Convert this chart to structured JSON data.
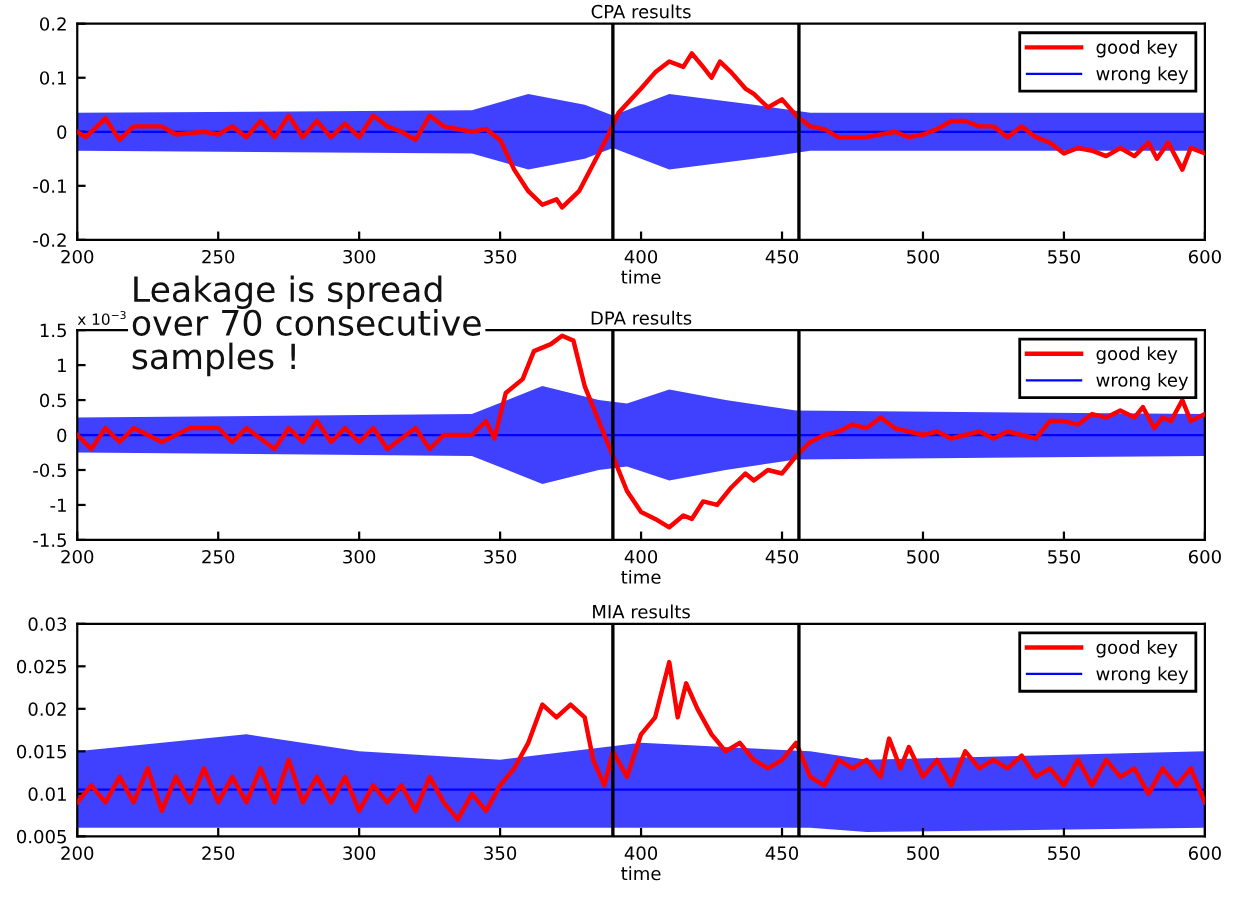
{
  "chart_data": [
    {
      "type": "line",
      "title": "CPA results",
      "xlabel": "time",
      "xlim": [
        200,
        600
      ],
      "xticks": [
        200,
        250,
        300,
        350,
        400,
        450,
        500,
        550,
        600
      ],
      "ylim": [
        -0.2,
        0.2
      ],
      "yticks": [
        -0.2,
        -0.1,
        0,
        0.1,
        0.2
      ],
      "legend": "top right",
      "grid": false,
      "marker": "none",
      "line_style": "solid",
      "annotations": [
        "Leakage is spread\nover 70 consecutive\nsamples !"
      ],
      "ref_lines": [
        {
          "axis": "x",
          "value": 390,
          "color": "#000000"
        },
        {
          "axis": "x",
          "value": 456,
          "color": "#000000"
        }
      ],
      "series": [
        {
          "name": "good key",
          "color": "#ff0000",
          "x": [
            200,
            203,
            210,
            215,
            220,
            230,
            235,
            245,
            250,
            255,
            260,
            265,
            270,
            275,
            280,
            285,
            290,
            295,
            300,
            305,
            310,
            315,
            320,
            325,
            330,
            340,
            345,
            350,
            355,
            360,
            365,
            370,
            372,
            378,
            383,
            388,
            392,
            400,
            405,
            410,
            415,
            418,
            422,
            425,
            428,
            432,
            437,
            440,
            445,
            450,
            455,
            460,
            465,
            470,
            480,
            490,
            495,
            500,
            505,
            510,
            515,
            520,
            525,
            530,
            535,
            540,
            545,
            550,
            555,
            560,
            565,
            570,
            575,
            580,
            583,
            587,
            592,
            595,
            600
          ],
          "values": [
            0,
            -0.01,
            0.025,
            -0.015,
            0.01,
            0.01,
            -0.005,
            0,
            -0.005,
            0.01,
            -0.01,
            0.02,
            -0.01,
            0.03,
            -0.01,
            0.02,
            -0.01,
            0.015,
            -0.01,
            0.03,
            0.01,
            0,
            -0.015,
            0.03,
            0.01,
            0,
            0.005,
            -0.015,
            -0.07,
            -0.11,
            -0.135,
            -0.125,
            -0.14,
            -0.11,
            -0.06,
            -0.01,
            0.035,
            0.08,
            0.11,
            0.13,
            0.12,
            0.145,
            0.12,
            0.1,
            0.13,
            0.11,
            0.08,
            0.07,
            0.045,
            0.06,
            0.03,
            0.01,
            0.005,
            -0.01,
            -0.01,
            0,
            -0.01,
            -0.005,
            0.005,
            0.02,
            0.02,
            0.01,
            0.01,
            -0.01,
            0.01,
            -0.01,
            -0.02,
            -0.04,
            -0.03,
            -0.035,
            -0.045,
            -0.03,
            -0.045,
            -0.02,
            -0.05,
            -0.02,
            -0.07,
            -0.03,
            -0.04
          ]
        },
        {
          "name": "wrong key",
          "color": "#0000ff",
          "x": [
            200,
            340,
            360,
            380,
            390,
            410,
            440,
            460,
            600
          ],
          "values": [
            0,
            0,
            0,
            0,
            0,
            0,
            0,
            0,
            0
          ],
          "lower": [
            -0.035,
            -0.04,
            -0.07,
            -0.05,
            -0.03,
            -0.07,
            -0.05,
            -0.035,
            -0.035
          ],
          "upper": [
            0.035,
            0.04,
            0.07,
            0.05,
            0.03,
            0.07,
            0.05,
            0.035,
            0.035
          ]
        }
      ]
    },
    {
      "type": "line",
      "title": "DPA results",
      "xlabel": "time",
      "xlim": [
        200,
        600
      ],
      "xticks": [
        200,
        250,
        300,
        350,
        400,
        450,
        500,
        550,
        600
      ],
      "ylim": [
        -1.5,
        1.5
      ],
      "yticks": [
        -1.5,
        -1,
        -0.5,
        0,
        0.5,
        1,
        1.5
      ],
      "legend": "top right",
      "grid": false,
      "marker": "none",
      "line_style": "solid",
      "annotations": [
        "x 10$^{−3}$"
      ],
      "ref_lines": [
        {
          "axis": "x",
          "value": 390,
          "color": "#000000"
        },
        {
          "axis": "x",
          "value": 456,
          "color": "#000000"
        }
      ],
      "series": [
        {
          "name": "good key",
          "color": "#ff0000",
          "x": [
            200,
            205,
            210,
            215,
            220,
            230,
            240,
            250,
            255,
            260,
            270,
            275,
            280,
            285,
            290,
            295,
            300,
            305,
            310,
            320,
            325,
            330,
            340,
            345,
            348,
            352,
            358,
            362,
            368,
            372,
            376,
            380,
            385,
            390,
            395,
            400,
            405,
            410,
            415,
            418,
            422,
            427,
            432,
            437,
            440,
            445,
            450,
            455,
            460,
            465,
            470,
            475,
            480,
            485,
            490,
            500,
            505,
            510,
            520,
            525,
            530,
            540,
            545,
            550,
            555,
            560,
            565,
            570,
            575,
            578,
            582,
            585,
            588,
            592,
            595,
            600
          ],
          "values": [
            0,
            -0.2,
            0.1,
            -0.1,
            0.1,
            -0.1,
            0.1,
            0.1,
            -0.1,
            0.1,
            -0.2,
            0.1,
            -0.1,
            0.2,
            -0.1,
            0.1,
            -0.1,
            0.1,
            -0.2,
            0.1,
            -0.2,
            0,
            0,
            0.2,
            -0.05,
            0.6,
            0.8,
            1.2,
            1.3,
            1.42,
            1.35,
            0.7,
            0.2,
            -0.3,
            -0.8,
            -1.1,
            -1.2,
            -1.32,
            -1.15,
            -1.2,
            -0.95,
            -1,
            -0.75,
            -0.55,
            -0.65,
            -0.5,
            -0.55,
            -0.3,
            -0.1,
            0,
            0.05,
            0.15,
            0.1,
            0.25,
            0.1,
            0,
            0.05,
            -0.05,
            0.05,
            -0.05,
            0.05,
            -0.05,
            0.2,
            0.2,
            0.15,
            0.3,
            0.25,
            0.35,
            0.25,
            0.4,
            0.1,
            0.25,
            0.2,
            0.5,
            0.2,
            0.3
          ]
        },
        {
          "name": "wrong key",
          "color": "#0000ff",
          "x": [
            200,
            340,
            365,
            385,
            395,
            410,
            430,
            455,
            600
          ],
          "values": [
            0,
            0,
            0,
            0,
            0,
            0,
            0,
            0,
            0
          ],
          "lower": [
            -0.25,
            -0.3,
            -0.7,
            -0.5,
            -0.45,
            -0.65,
            -0.5,
            -0.35,
            -0.3
          ],
          "upper": [
            0.25,
            0.3,
            0.7,
            0.5,
            0.45,
            0.65,
            0.5,
            0.35,
            0.3
          ]
        }
      ]
    },
    {
      "type": "line",
      "title": "MIA results",
      "xlabel": "time",
      "xlim": [
        200,
        600
      ],
      "xticks": [
        200,
        250,
        300,
        350,
        400,
        450,
        500,
        550,
        600
      ],
      "ylim": [
        0.005,
        0.03
      ],
      "yticks": [
        0.005,
        0.01,
        0.015,
        0.02,
        0.025,
        0.03
      ],
      "legend": "top right",
      "grid": false,
      "marker": "none",
      "line_style": "solid",
      "ref_lines": [
        {
          "axis": "x",
          "value": 390,
          "color": "#000000"
        },
        {
          "axis": "x",
          "value": 456,
          "color": "#000000"
        }
      ],
      "series": [
        {
          "name": "good key",
          "color": "#ff0000",
          "x": [
            200,
            205,
            210,
            215,
            220,
            225,
            230,
            235,
            240,
            245,
            250,
            255,
            260,
            265,
            270,
            275,
            280,
            285,
            290,
            295,
            300,
            305,
            310,
            315,
            320,
            325,
            330,
            335,
            340,
            345,
            350,
            355,
            360,
            365,
            370,
            375,
            380,
            383,
            387,
            390,
            395,
            400,
            405,
            410,
            413,
            416,
            420,
            425,
            430,
            435,
            440,
            445,
            450,
            455,
            460,
            465,
            470,
            475,
            480,
            485,
            488,
            492,
            495,
            500,
            505,
            510,
            515,
            520,
            525,
            530,
            535,
            540,
            545,
            550,
            555,
            560,
            565,
            570,
            575,
            580,
            585,
            590,
            595,
            600
          ],
          "values": [
            0.009,
            0.011,
            0.009,
            0.012,
            0.009,
            0.013,
            0.008,
            0.012,
            0.009,
            0.013,
            0.009,
            0.012,
            0.009,
            0.013,
            0.009,
            0.014,
            0.009,
            0.012,
            0.009,
            0.012,
            0.008,
            0.011,
            0.009,
            0.011,
            0.008,
            0.012,
            0.009,
            0.007,
            0.01,
            0.008,
            0.011,
            0.013,
            0.016,
            0.0205,
            0.019,
            0.0205,
            0.019,
            0.014,
            0.011,
            0.015,
            0.012,
            0.017,
            0.019,
            0.0255,
            0.019,
            0.023,
            0.02,
            0.017,
            0.015,
            0.016,
            0.014,
            0.013,
            0.014,
            0.016,
            0.012,
            0.011,
            0.014,
            0.013,
            0.014,
            0.012,
            0.0165,
            0.013,
            0.0155,
            0.012,
            0.014,
            0.011,
            0.015,
            0.013,
            0.014,
            0.013,
            0.0145,
            0.012,
            0.013,
            0.011,
            0.014,
            0.011,
            0.014,
            0.012,
            0.013,
            0.01,
            0.013,
            0.011,
            0.013,
            0.009
          ]
        },
        {
          "name": "wrong key",
          "color": "#0000ff",
          "x": [
            200,
            260,
            300,
            350,
            400,
            460,
            480,
            600
          ],
          "values": [
            0.0105,
            0.0105,
            0.0105,
            0.0105,
            0.0105,
            0.0105,
            0.0105,
            0.0105
          ],
          "lower": [
            0.006,
            0.006,
            0.006,
            0.006,
            0.006,
            0.006,
            0.0055,
            0.006
          ],
          "upper": [
            0.015,
            0.017,
            0.015,
            0.014,
            0.016,
            0.015,
            0.014,
            0.015
          ]
        }
      ]
    }
  ]
}
